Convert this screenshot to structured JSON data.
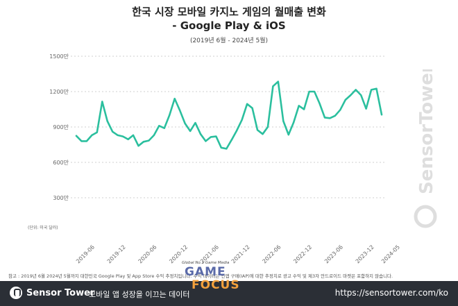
{
  "title_line1": "한국 시장 모바일 카지노 게임의 월매출 변화",
  "title_line2": "- Google Play & iOS",
  "subtitle": "(2019년 6월 - 2024년 5월)",
  "unit_label": "(단위: 미국 달러)",
  "note": "참고 : 2019년 6월 2024년 5월까지 대한민국 Google Play 및 App Store 수익 추정치입니다. 수익 데이터는 인앱 구매(IAP)에 대한 추정치로 광고 수익 및 제3자 안드로이드 마켓은 포함하지 않습니다.",
  "watermark": "SensorTower",
  "media_logo": {
    "small": "Global No.1 Game Media",
    "game": "GAME",
    "focus": "FOCUS"
  },
  "footer": {
    "logo_text": "Sensor Tower",
    "tagline": "모바일 앱 성장을 이끄는 데이터",
    "url": "https://sensortower.com/ko"
  },
  "colors": {
    "line": "#2bbf9e",
    "footer_bg": "#2b2f36"
  },
  "chart_data": {
    "type": "line",
    "title": "한국 시장 모바일 카지노 게임의 월매출 변화 - Google Play & iOS",
    "subtitle": "(2019년 6월 - 2024년 5월)",
    "ylim": [
      0,
      1500
    ],
    "yticks": [
      300,
      600,
      900,
      1200,
      1500
    ],
    "ytick_labels": [
      "300만",
      "600만",
      "900만",
      "1200만",
      "1500만"
    ],
    "xtick_labels": [
      "2019-06",
      "2019-12",
      "2020-06",
      "2020-12",
      "2021-06",
      "2021-12",
      "2022-06",
      "2022-12",
      "2023-06",
      "2023-12",
      "2024-05"
    ],
    "grid": true,
    "x": [
      "2019-06",
      "2019-07",
      "2019-08",
      "2019-09",
      "2019-10",
      "2019-11",
      "2019-12",
      "2020-01",
      "2020-02",
      "2020-03",
      "2020-04",
      "2020-05",
      "2020-06",
      "2020-07",
      "2020-08",
      "2020-09",
      "2020-10",
      "2020-11",
      "2020-12",
      "2021-01",
      "2021-02",
      "2021-03",
      "2021-04",
      "2021-05",
      "2021-06",
      "2021-07",
      "2021-08",
      "2021-09",
      "2021-10",
      "2021-11",
      "2021-12",
      "2022-01",
      "2022-02",
      "2022-03",
      "2022-04",
      "2022-05",
      "2022-06",
      "2022-07",
      "2022-08",
      "2022-09",
      "2022-10",
      "2022-11",
      "2022-12",
      "2023-01",
      "2023-02",
      "2023-03",
      "2023-04",
      "2023-05",
      "2023-06",
      "2023-07",
      "2023-08",
      "2023-09",
      "2023-10",
      "2023-11",
      "2023-12",
      "2024-01",
      "2024-02",
      "2024-03",
      "2024-04",
      "2024-05"
    ],
    "series": [
      {
        "values": [
          825,
          780,
          780,
          830,
          855,
          1115,
          950,
          860,
          830,
          820,
          795,
          830,
          740,
          775,
          785,
          830,
          910,
          890,
          1000,
          1140,
          1040,
          930,
          865,
          935,
          840,
          780,
          815,
          820,
          725,
          715,
          790,
          870,
          960,
          1095,
          1060,
          875,
          840,
          900,
          1245,
          1285,
          950,
          835,
          940,
          1080,
          1050,
          1200,
          1200,
          1100,
          980,
          975,
          995,
          1045,
          1130,
          1170,
          1215,
          1170,
          1055,
          1215,
          1225,
          1005
        ]
      }
    ]
  }
}
